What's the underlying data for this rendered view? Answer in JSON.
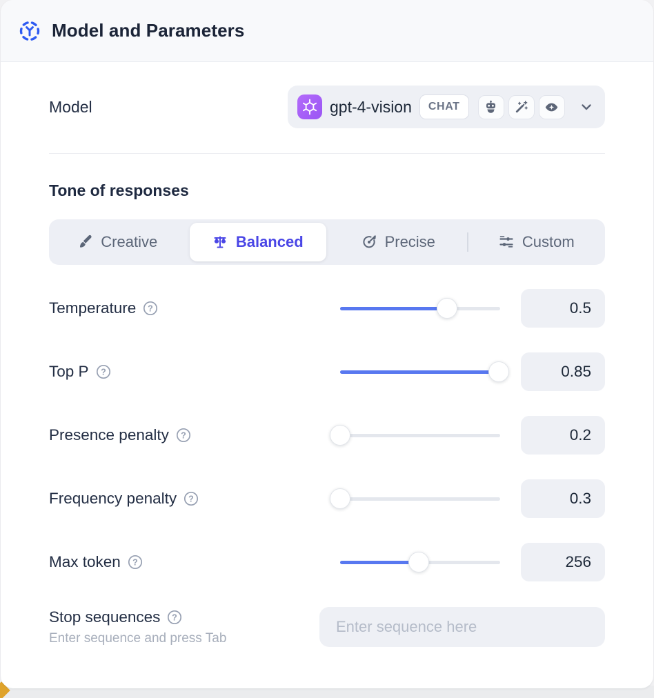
{
  "header": {
    "title": "Model and Parameters"
  },
  "model": {
    "label": "Model",
    "selected_model": "gpt-4-vision",
    "type_badge": "CHAT",
    "provider": "openai",
    "capability_icons": [
      "robot-icon",
      "magic-wand-icon",
      "vision-eye-icon"
    ]
  },
  "tone": {
    "heading": "Tone of responses",
    "options": [
      {
        "label": "Creative",
        "icon": "paintbrush-icon",
        "selected": false
      },
      {
        "label": "Balanced",
        "icon": "balance-scale-icon",
        "selected": true
      },
      {
        "label": "Precise",
        "icon": "target-icon",
        "selected": false
      },
      {
        "label": "Custom",
        "icon": "sliders-icon",
        "selected": false
      }
    ]
  },
  "parameters": [
    {
      "label": "Temperature",
      "value": "0.5",
      "fill_pct": 67
    },
    {
      "label": "Top P",
      "value": "0.85",
      "fill_pct": 99
    },
    {
      "label": "Presence penalty",
      "value": "0.2",
      "fill_pct": 0
    },
    {
      "label": "Frequency penalty",
      "value": "0.3",
      "fill_pct": 0
    },
    {
      "label": "Max token",
      "value": "256",
      "fill_pct": 49
    }
  ],
  "stop_sequences": {
    "label": "Stop sequences",
    "hint": "Enter sequence and press Tab",
    "placeholder": "Enter sequence here"
  },
  "colors": {
    "accent_blue": "#5878f0",
    "selected_indigo": "#4a46e6",
    "header_icon_blue": "#2e5bf2",
    "provider_purple": "#9a55f4",
    "field_bg": "#eef0f5",
    "peek_yellow": "#dfa32b"
  }
}
